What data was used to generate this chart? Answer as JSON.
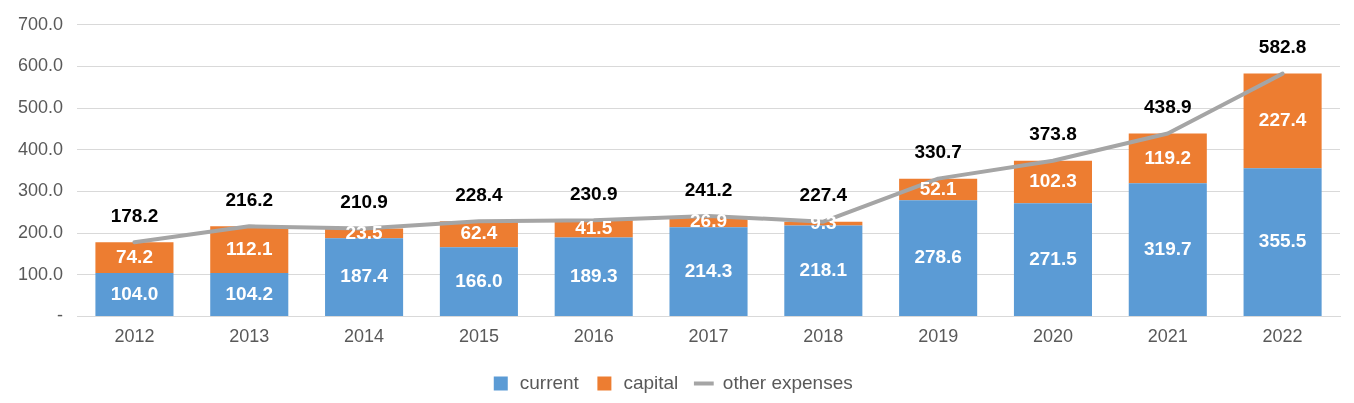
{
  "chart_data": {
    "type": "bar",
    "stacked": true,
    "categories": [
      "2012",
      "2013",
      "2014",
      "2015",
      "2016",
      "2017",
      "2018",
      "2019",
      "2020",
      "2021",
      "2022"
    ],
    "series": [
      {
        "name": "current",
        "color": "#5b9bd5",
        "values": [
          104.0,
          104.2,
          187.4,
          166.0,
          189.3,
          214.3,
          218.1,
          278.6,
          271.5,
          319.7,
          355.5
        ],
        "value_labels": [
          "104.0",
          "104.2",
          "187.4",
          "166.0",
          "189.3",
          "214.3",
          "218.1",
          "278.6",
          "271.5",
          "319.7",
          "355.5"
        ]
      },
      {
        "name": "capital",
        "color": "#ed7d31",
        "values": [
          74.2,
          112.1,
          23.5,
          62.4,
          41.5,
          26.9,
          9.3,
          52.1,
          102.3,
          119.2,
          227.4
        ],
        "value_labels": [
          "74.2",
          "112.1",
          "23.5",
          "62.4",
          "41.5",
          "26.9",
          "9.3",
          "52.1",
          "102.3",
          "119.2",
          "227.4"
        ]
      },
      {
        "name": "other expenses",
        "type": "line",
        "color": "#a5a5a5",
        "marker": "none",
        "values": [
          178.2,
          216.2,
          210.9,
          228.4,
          230.9,
          241.2,
          227.4,
          330.7,
          373.8,
          438.9,
          582.8
        ],
        "value_labels": [
          "178.2",
          "216.2",
          "210.9",
          "228.4",
          "230.9",
          "241.2",
          "227.4",
          "330.7",
          "373.8",
          "438.9",
          "582.8"
        ]
      }
    ],
    "ylim": [
      0,
      700
    ],
    "yticks": [
      {
        "value": 0,
        "label": "-"
      },
      {
        "value": 100,
        "label": "100.0"
      },
      {
        "value": 200,
        "label": "200.0"
      },
      {
        "value": 300,
        "label": "300.0"
      },
      {
        "value": 400,
        "label": "400.0"
      },
      {
        "value": 500,
        "label": "500.0"
      },
      {
        "value": 600,
        "label": "600.0"
      },
      {
        "value": 700,
        "label": "700.0"
      }
    ],
    "grid": "y",
    "legend": "bottom"
  }
}
